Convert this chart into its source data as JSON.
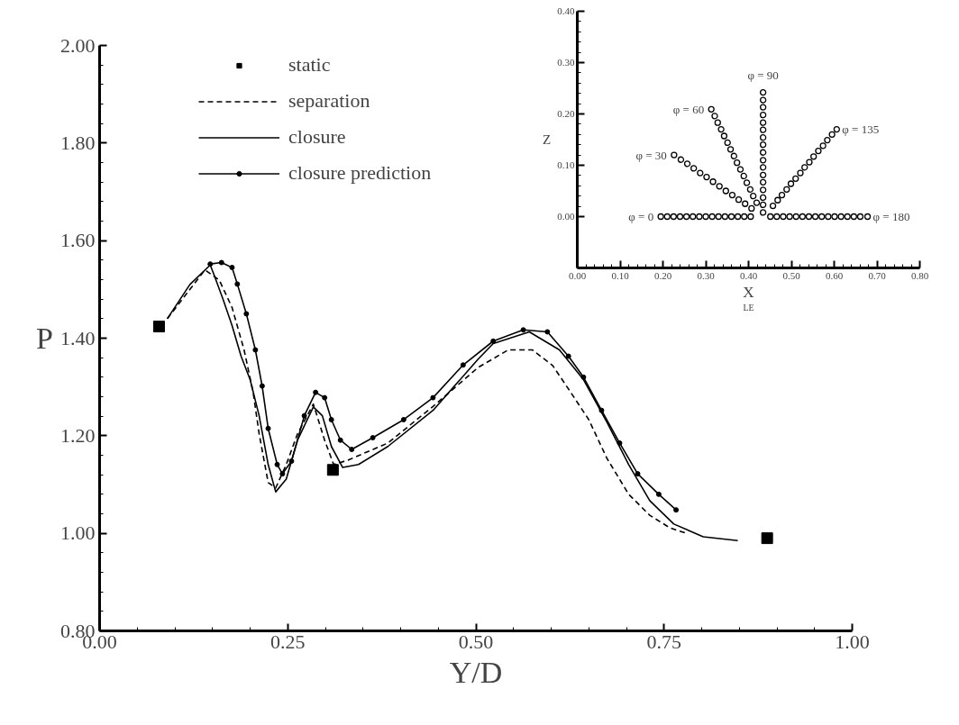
{
  "chart_data": [
    {
      "type": "line",
      "xlabel": "Y/D",
      "ylabel": "P",
      "legend": "top left",
      "grid": false,
      "xlim": [
        0,
        1
      ],
      "xticks": [
        {
          "value": 0,
          "label": "0.00"
        },
        {
          "value": 0.25,
          "label": "0.25"
        },
        {
          "value": 0.5,
          "label": "0.50"
        },
        {
          "value": 0.75,
          "label": "0.75"
        },
        {
          "value": 1,
          "label": "1.00"
        }
      ],
      "ylim": [
        0.8,
        2.0
      ],
      "yticks": [
        {
          "value": 0.8,
          "label": "0.80"
        },
        {
          "value": 1.0,
          "label": "1.00"
        },
        {
          "value": 1.2,
          "label": "1.20"
        },
        {
          "value": 1.4,
          "label": "1.40"
        },
        {
          "value": 1.6,
          "label": "1.60"
        },
        {
          "value": 1.8,
          "label": "1.80"
        },
        {
          "value": 2.0,
          "label": "2.00"
        }
      ],
      "series": [
        {
          "name": "static",
          "type": "scatter",
          "marker": "square",
          "color": "#000000",
          "x": [
            0.079,
            0.31,
            0.887
          ],
          "values": [
            1.424,
            1.13,
            0.99
          ]
        },
        {
          "name": "separation",
          "type": "line",
          "line_style": "dashed",
          "marker": "none",
          "color": "#000000",
          "x": [
            0.09,
            0.12,
            0.14,
            0.159,
            0.176,
            0.192,
            0.204,
            0.212,
            0.224,
            0.234,
            0.248,
            0.263,
            0.284,
            0.299,
            0.311,
            0.33,
            0.383,
            0.443,
            0.503,
            0.543,
            0.575,
            0.602,
            0.626,
            0.65,
            0.674,
            0.703,
            0.731,
            0.758,
            0.78
          ],
          "values": [
            1.44,
            1.5,
            1.54,
            1.519,
            1.463,
            1.376,
            1.289,
            1.204,
            1.104,
            1.093,
            1.141,
            1.204,
            1.265,
            1.191,
            1.141,
            1.15,
            1.185,
            1.26,
            1.34,
            1.376,
            1.376,
            1.344,
            1.289,
            1.233,
            1.154,
            1.08,
            1.037,
            1.011,
            1.0
          ]
        },
        {
          "name": "closure",
          "type": "line",
          "line_style": "solid",
          "marker": "none",
          "color": "#000000",
          "x": [
            0.09,
            0.12,
            0.147,
            0.152,
            0.164,
            0.176,
            0.188,
            0.2,
            0.212,
            0.224,
            0.234,
            0.248,
            0.263,
            0.284,
            0.296,
            0.308,
            0.323,
            0.344,
            0.383,
            0.443,
            0.503,
            0.523,
            0.571,
            0.611,
            0.643,
            0.674,
            0.703,
            0.731,
            0.763,
            0.802,
            0.848
          ],
          "values": [
            1.44,
            1.51,
            1.55,
            1.53,
            1.48,
            1.426,
            1.363,
            1.315,
            1.241,
            1.141,
            1.085,
            1.111,
            1.191,
            1.259,
            1.241,
            1.178,
            1.135,
            1.141,
            1.178,
            1.252,
            1.357,
            1.389,
            1.413,
            1.376,
            1.315,
            1.228,
            1.141,
            1.067,
            1.019,
            0.993,
            0.985
          ]
        },
        {
          "name": "closure prediction",
          "type": "line",
          "line_style": "solid",
          "marker": "circle",
          "color": "#000000",
          "x": [
            0.147,
            0.162,
            0.176,
            0.183,
            0.195,
            0.207,
            0.216,
            0.224,
            0.236,
            0.243,
            0.255,
            0.272,
            0.287,
            0.299,
            0.308,
            0.32,
            0.335,
            0.363,
            0.404,
            0.443,
            0.483,
            0.523,
            0.563,
            0.595,
            0.623,
            0.643,
            0.667,
            0.691,
            0.715,
            0.743,
            0.766
          ],
          "values": [
            1.552,
            1.555,
            1.545,
            1.511,
            1.45,
            1.376,
            1.302,
            1.215,
            1.141,
            1.122,
            1.148,
            1.241,
            1.289,
            1.278,
            1.233,
            1.191,
            1.172,
            1.196,
            1.233,
            1.278,
            1.345,
            1.394,
            1.417,
            1.413,
            1.363,
            1.32,
            1.252,
            1.185,
            1.122,
            1.08,
            1.048
          ]
        }
      ]
    },
    {
      "type": "scatter",
      "xlabel": "X$_{LE}$",
      "ylabel": "Z",
      "grid": false,
      "marker": "circle",
      "xlim": [
        0,
        0.8
      ],
      "xticks": [
        {
          "value": 0,
          "label": "0.00"
        },
        {
          "value": 0.1,
          "label": "0.10"
        },
        {
          "value": 0.2,
          "label": "0.20"
        },
        {
          "value": 0.3,
          "label": "0.30"
        },
        {
          "value": 0.4,
          "label": "0.40"
        },
        {
          "value": 0.5,
          "label": "0.50"
        },
        {
          "value": 0.6,
          "label": "0.60"
        },
        {
          "value": 0.7,
          "label": "0.70"
        },
        {
          "value": 0.8,
          "label": "0.80"
        }
      ],
      "ylim": [
        -0.1,
        0.4
      ],
      "yticks": [
        {
          "value": 0,
          "label": "0.00"
        },
        {
          "value": 0.1,
          "label": "0.10"
        },
        {
          "value": 0.2,
          "label": "0.20"
        },
        {
          "value": 0.3,
          "label": "0.30"
        },
        {
          "value": 0.4,
          "label": "0.40"
        }
      ],
      "series": [
        {
          "name": "φ = 0",
          "color": "#000000",
          "x": [
            0.405,
            0.39,
            0.375,
            0.36,
            0.345,
            0.33,
            0.315,
            0.3,
            0.285,
            0.27,
            0.255,
            0.24,
            0.225,
            0.21,
            0.195
          ],
          "values": [
            0,
            0,
            0,
            0,
            0,
            0,
            0,
            0,
            0,
            0,
            0,
            0,
            0,
            0,
            0
          ]
        },
        {
          "name": "φ = 30",
          "color": "#000000",
          "x": [
            0.407,
            0.392,
            0.377,
            0.362,
            0.347,
            0.332,
            0.317,
            0.302,
            0.287,
            0.272,
            0.257,
            0.242,
            0.226
          ],
          "values": [
            0.016,
            0.025,
            0.033,
            0.042,
            0.05,
            0.059,
            0.068,
            0.077,
            0.085,
            0.094,
            0.103,
            0.111,
            0.12
          ]
        },
        {
          "name": "φ = 60",
          "color": "#000000",
          "x": [
            0.419,
            0.411,
            0.404,
            0.396,
            0.389,
            0.381,
            0.373,
            0.366,
            0.358,
            0.351,
            0.343,
            0.336,
            0.328,
            0.321,
            0.313
          ],
          "values": [
            0.027,
            0.04,
            0.053,
            0.066,
            0.079,
            0.092,
            0.105,
            0.118,
            0.131,
            0.144,
            0.157,
            0.17,
            0.183,
            0.196,
            0.209
          ]
        },
        {
          "name": "φ = 90",
          "color": "#000000",
          "x": [
            0.434,
            0.434,
            0.434,
            0.434,
            0.434,
            0.434,
            0.434,
            0.434,
            0.434,
            0.434,
            0.434,
            0.434,
            0.434,
            0.434,
            0.434,
            0.434,
            0.434
          ],
          "values": [
            0.008,
            0.023,
            0.037,
            0.052,
            0.067,
            0.081,
            0.096,
            0.11,
            0.125,
            0.14,
            0.154,
            0.169,
            0.183,
            0.198,
            0.213,
            0.227,
            0.242
          ]
        },
        {
          "name": "φ = 135",
          "color": "#000000",
          "x": [
            0.457,
            0.468,
            0.478,
            0.489,
            0.499,
            0.51,
            0.521,
            0.531,
            0.542,
            0.552,
            0.563,
            0.574,
            0.584,
            0.595,
            0.606
          ],
          "values": [
            0.021,
            0.032,
            0.042,
            0.053,
            0.064,
            0.074,
            0.085,
            0.096,
            0.106,
            0.117,
            0.128,
            0.138,
            0.149,
            0.16,
            0.17
          ]
        },
        {
          "name": "φ = 180",
          "color": "#000000",
          "x": [
            0.451,
            0.466,
            0.481,
            0.496,
            0.511,
            0.526,
            0.541,
            0.556,
            0.571,
            0.586,
            0.601,
            0.616,
            0.631,
            0.646,
            0.661,
            0.678
          ],
          "values": [
            0,
            0,
            0,
            0,
            0,
            0,
            0,
            0,
            0,
            0,
            0,
            0,
            0,
            0,
            0,
            0
          ]
        }
      ]
    }
  ]
}
